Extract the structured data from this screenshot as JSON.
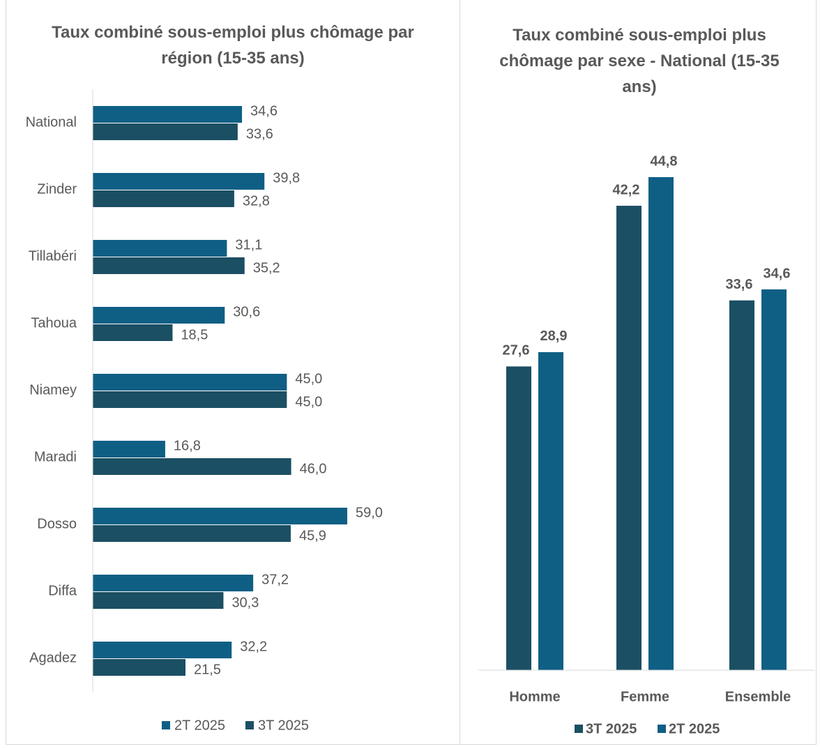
{
  "chart_data": [
    {
      "type": "hbar",
      "title": "Taux combiné sous-emploi plus chômage par région (15-35 ans)",
      "categories": [
        "National",
        "Zinder",
        "Tillabéri",
        "Tahoua",
        "Niamey",
        "Maradi",
        "Dosso",
        "Diffa",
        "Agadez"
      ],
      "series": [
        {
          "name": "2T 2025",
          "color": "#0f5f85",
          "values": [
            34.6,
            39.8,
            31.1,
            30.6,
            45.0,
            16.8,
            59.0,
            37.2,
            32.2
          ],
          "value_labels": [
            "34,6",
            "39,8",
            "31,1",
            "30,6",
            "45,0",
            "16,8",
            "59,0",
            "37,2",
            "32,2"
          ]
        },
        {
          "name": "3T 2025",
          "color": "#1b4f63",
          "values": [
            33.6,
            32.8,
            35.2,
            18.5,
            45.0,
            46.0,
            45.9,
            30.3,
            21.5
          ],
          "value_labels": [
            "33,6",
            "32,8",
            "35,2",
            "18,5",
            "45,0",
            "46,0",
            "45,9",
            "30,3",
            "21,5"
          ]
        }
      ]
    },
    {
      "type": "bar",
      "title": "Taux combiné sous-emploi plus chômage par sexe - National (15-35 ans)",
      "categories": [
        "Homme",
        "Femme",
        "Ensemble"
      ],
      "series": [
        {
          "name": "3T 2025",
          "color": "#1b4f63",
          "values": [
            27.6,
            42.2,
            33.6
          ],
          "value_labels": [
            "27,6",
            "42,2",
            "33,6"
          ]
        },
        {
          "name": "2T 2025",
          "color": "#0f5f85",
          "values": [
            28.9,
            44.8,
            34.6
          ],
          "value_labels": [
            "28,9",
            "44,8",
            "34,6"
          ]
        }
      ]
    }
  ]
}
